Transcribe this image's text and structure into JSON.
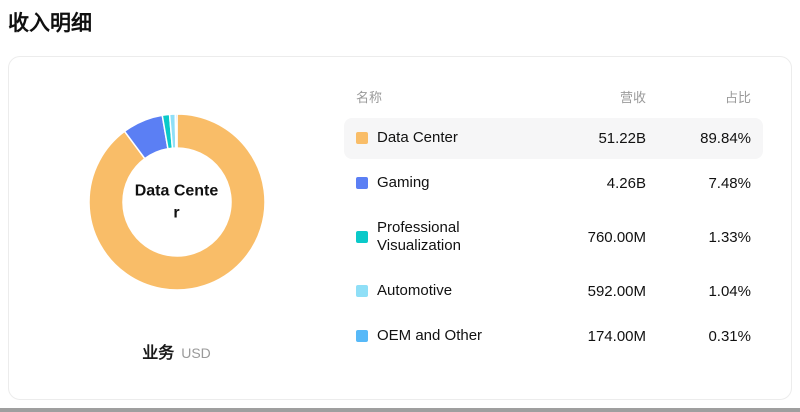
{
  "page_title": "收入明细",
  "chart_data": {
    "type": "pie",
    "donut": true,
    "title": "收入明细",
    "center_label": "Data Center",
    "axis_label": "业务",
    "unit": "USD",
    "legend_position": "right",
    "columns": {
      "name": "名称",
      "revenue": "营收",
      "share": "占比"
    },
    "series": [
      {
        "name": "Data Center",
        "revenue": "51.22B",
        "share": "89.84%",
        "value": 89.84,
        "color": "#F9BD68",
        "highlighted": true
      },
      {
        "name": "Gaming",
        "revenue": "4.26B",
        "share": "7.48%",
        "value": 7.48,
        "color": "#5B7FF4",
        "highlighted": false
      },
      {
        "name": "Professional Visualization",
        "revenue": "760.00M",
        "share": "1.33%",
        "value": 1.33,
        "color": "#0AC9C9",
        "highlighted": false
      },
      {
        "name": "Automotive",
        "revenue": "592.00M",
        "share": "1.04%",
        "value": 1.04,
        "color": "#8FDFF7",
        "highlighted": false
      },
      {
        "name": "OEM and Other",
        "revenue": "174.00M",
        "share": "0.31%",
        "value": 0.31,
        "color": "#57B9F8",
        "highlighted": false
      }
    ]
  }
}
